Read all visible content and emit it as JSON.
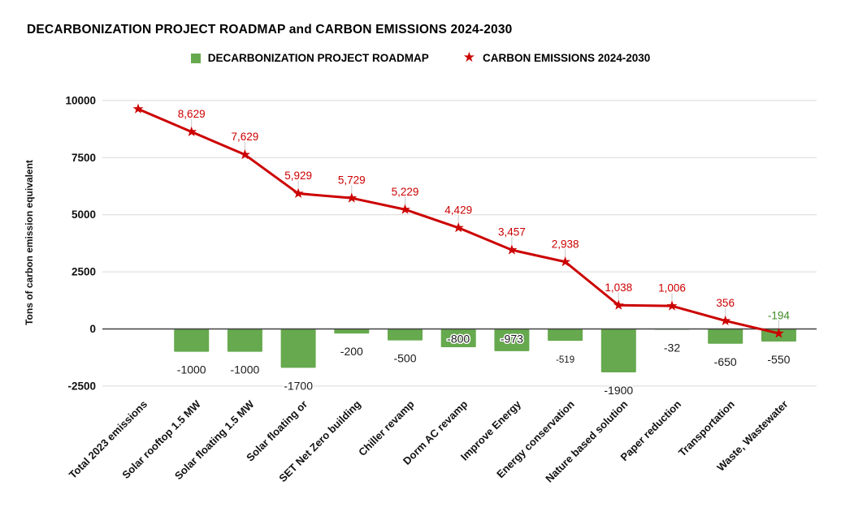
{
  "title": "DECARBONIZATION PROJECT ROADMAP and CARBON EMISSIONS 2024-2030",
  "legend": {
    "items": [
      {
        "label": "DECARBONIZATION PROJECT ROADMAP",
        "marker": "square-icon",
        "color": "#66a94e"
      },
      {
        "label": "CARBON EMISSIONS 2024-2030",
        "marker": "star-icon",
        "color": "#cc0000"
      }
    ],
    "position": "top-center"
  },
  "colors": {
    "bar_green": "#66a94e",
    "line_red": "#cc0000",
    "negative_result_green": "#3f8b27",
    "gridline": "#d9d9d9",
    "zero_line": "#404040",
    "axis_text": "#111111",
    "bar_label_text": "#1a1a1a",
    "leader_line": "#c9c9c9",
    "background": "#ffffff"
  },
  "chart_data": {
    "type": "combo",
    "title": "DECARBONIZATION PROJECT ROADMAP and CARBON EMISSIONS 2024-2030",
    "ylabel": "Tons of carbon emission equivalent",
    "xlabel": "",
    "grid": true,
    "legend_position": "top",
    "ylim": [
      -2500,
      10500
    ],
    "yticks": [
      10000,
      7500,
      5000,
      2500,
      0,
      -2500
    ],
    "ytick_labels": [
      "10000",
      "7500",
      "5000",
      "2500",
      "0",
      "-2500"
    ],
    "categories": [
      "Total 2023 emissions",
      "Solar rooftop 1.5 MW",
      "Solar floating 1.5 MW",
      "Solar floating or",
      "SET Net Zero building",
      "Chiller revamp",
      "Dorm AC revamp",
      "Improve Energy",
      "Energy conservation",
      "Nature based solution",
      "Paper reduction",
      "Transportation",
      "Waste, Wastewater"
    ],
    "series": [
      {
        "name": "DECARBONIZATION PROJECT ROADMAP",
        "type": "bar",
        "color": "#66a94e",
        "values": [
          null,
          -1000,
          -1000,
          -1700,
          -200,
          -500,
          -800,
          -973,
          -519,
          -1900,
          -32,
          -650,
          -550
        ],
        "labels": [
          "",
          "-1000",
          "-1000",
          "-1700",
          "-200",
          "-500",
          "-800",
          "-973",
          "-519",
          "-1900",
          "-32",
          "-650",
          "-550"
        ],
        "label_positions": [
          "",
          "below",
          "below",
          "below",
          "below",
          "below",
          "in",
          "in",
          "below",
          "below",
          "below",
          "below",
          "below"
        ],
        "small_labels": [
          8
        ]
      },
      {
        "name": "CARBON EMISSIONS 2024-2030",
        "type": "line",
        "marker": "star",
        "color": "#cc0000",
        "values": [
          9629,
          8629,
          7629,
          5929,
          5729,
          5229,
          4429,
          3457,
          2938,
          1038,
          1006,
          356,
          -194
        ],
        "labels": [
          "",
          "8,629",
          "7,629",
          "5,929",
          "5,729",
          "5,229",
          "4,429",
          "3,457",
          "2,938",
          "1,038",
          "1,006",
          "356",
          "-194"
        ],
        "label_colors": [
          null,
          "#cc0000",
          "#cc0000",
          "#cc0000",
          "#cc0000",
          "#cc0000",
          "#cc0000",
          "#cc0000",
          "#cc0000",
          "#cc0000",
          "#cc0000",
          "#cc0000",
          "#3f8b27"
        ]
      }
    ]
  }
}
